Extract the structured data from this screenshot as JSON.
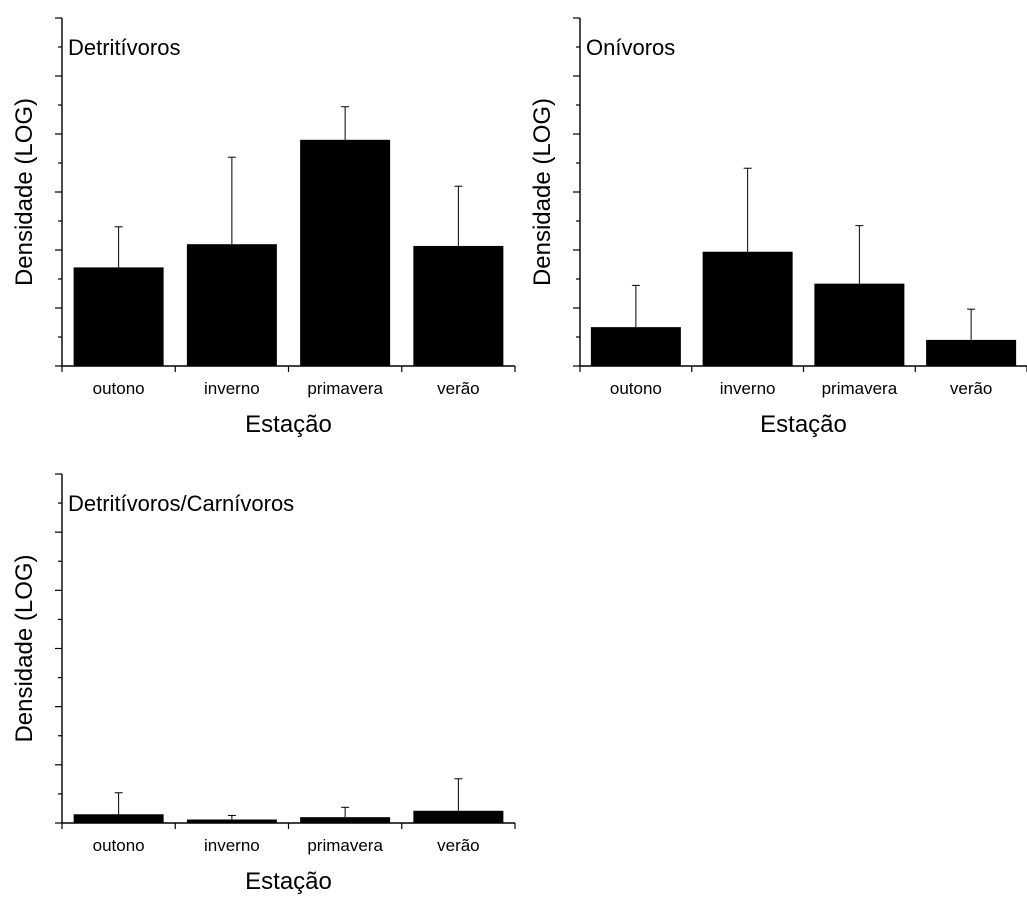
{
  "chart_data": [
    {
      "type": "bar",
      "title": "Detritívoros",
      "xlabel": "Estação",
      "ylabel": "Densidade (LOG)",
      "categories": [
        "outono",
        "inverno",
        "primavera",
        "verão"
      ],
      "values": [
        1.7,
        2.1,
        3.9,
        2.07
      ],
      "error": [
        0.7,
        1.5,
        0.57,
        1.03
      ],
      "ylim": [
        0,
        6
      ],
      "y_tick_labels_shown": false,
      "legend": "none"
    },
    {
      "type": "bar",
      "title": "Onívoros",
      "xlabel": "Estação",
      "ylabel": "Densidade (LOG)",
      "categories": [
        "outono",
        "inverno",
        "primavera",
        "verão"
      ],
      "values": [
        0.67,
        1.97,
        1.42,
        0.45
      ],
      "error": [
        0.72,
        1.44,
        1.0,
        0.53
      ],
      "ylim": [
        0,
        6
      ],
      "y_tick_labels_shown": false,
      "legend": "none"
    },
    {
      "type": "bar",
      "title": "Detritívoros/Carnívoros",
      "xlabel": "Estação",
      "ylabel": "Densidade (LOG)",
      "categories": [
        "outono",
        "inverno",
        "primavera",
        "verão"
      ],
      "values": [
        0.15,
        0.06,
        0.1,
        0.21
      ],
      "error": [
        0.37,
        0.07,
        0.17,
        0.55
      ],
      "ylim": [
        0,
        6
      ],
      "y_tick_labels_shown": false,
      "legend": "none"
    }
  ]
}
